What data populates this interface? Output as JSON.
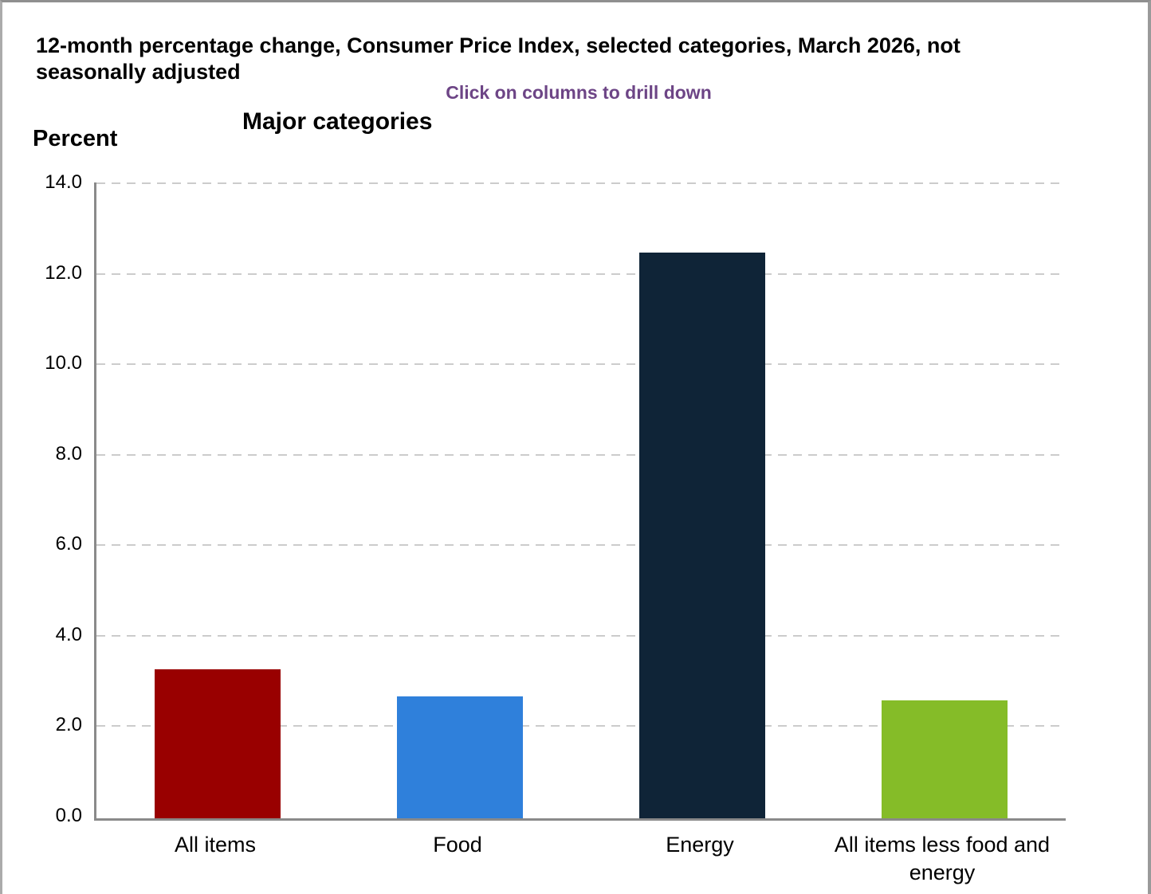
{
  "page": {
    "header": "12-month percentage change, Consumer Price Index, selected categories, March 2026, not seasonally adjusted",
    "drill_hint": "Click on columns to drill down",
    "drill_hint_color": "#6d4586",
    "chart_title": "Major categories",
    "y_axis_title": "Percent"
  },
  "chart_data": {
    "type": "bar",
    "title": "Major categories",
    "xlabel": "",
    "ylabel": "Percent",
    "categories": [
      "All items",
      "Food",
      "Energy",
      "All items less food and energy"
    ],
    "values": [
      3.3,
      2.7,
      12.5,
      2.6
    ],
    "bar_colors": [
      "#990000",
      "#2f80db",
      "#0f2437",
      "#85bc28"
    ],
    "ylim": [
      0,
      14
    ],
    "ytick_step": 2,
    "ytick_labels": [
      "0.0",
      "2.0",
      "4.0",
      "6.0",
      "8.0",
      "10.0",
      "12.0",
      "14.0"
    ],
    "grid": "horizontal-dashed",
    "gridline_color": "#cccccc",
    "axis_color": "#8a8a8a",
    "legend": "none"
  }
}
